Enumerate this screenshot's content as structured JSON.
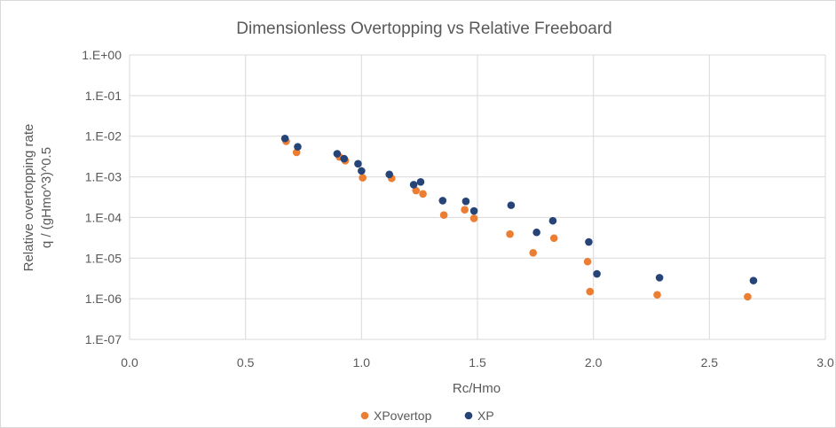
{
  "chart_data": {
    "type": "scatter",
    "title": "Dimensionless Overtopping vs Relative Freeboard",
    "xlabel": "Rc/Hmo",
    "ylabel": [
      "Relative overtopping rate",
      "q / (gHmo^3)^0.5"
    ],
    "x_scale": "linear",
    "y_scale": "log",
    "xlim": [
      0,
      3
    ],
    "ylim": [
      1e-07,
      1
    ],
    "grid": true,
    "legend_position": "bottom",
    "x_ticks": [
      {
        "value": 0,
        "label": "0.0"
      },
      {
        "value": 0.5,
        "label": "0.5"
      },
      {
        "value": 1.0,
        "label": "1.0"
      },
      {
        "value": 1.5,
        "label": "1.5"
      },
      {
        "value": 2.0,
        "label": "2.0"
      },
      {
        "value": 2.5,
        "label": "2.5"
      },
      {
        "value": 3.0,
        "label": "3.0"
      }
    ],
    "y_ticks": [
      {
        "value": 1,
        "label": "1.E+00"
      },
      {
        "value": 0.1,
        "label": "1.E-01"
      },
      {
        "value": 0.01,
        "label": "1.E-02"
      },
      {
        "value": 0.001,
        "label": "1.E-03"
      },
      {
        "value": 0.0001,
        "label": "1.E-04"
      },
      {
        "value": 1e-05,
        "label": "1.E-05"
      },
      {
        "value": 1e-06,
        "label": "1.E-06"
      },
      {
        "value": 1e-07,
        "label": "1.E-07"
      }
    ],
    "series": [
      {
        "name": "XPovertop",
        "color": "#ED7D31",
        "points": [
          [
            0.675,
            0.0075
          ],
          [
            0.72,
            0.004
          ],
          [
            0.905,
            0.0031
          ],
          [
            0.93,
            0.0025
          ],
          [
            1.005,
            0.00095
          ],
          [
            1.13,
            0.00092
          ],
          [
            1.235,
            0.00046
          ],
          [
            1.265,
            0.00038
          ],
          [
            1.355,
            0.000115
          ],
          [
            1.445,
            0.000155
          ],
          [
            1.485,
            9.5e-05
          ],
          [
            1.64,
            3.9e-05
          ],
          [
            1.74,
            1.35e-05
          ],
          [
            1.83,
            3.1e-05
          ],
          [
            1.975,
            8.2e-06
          ],
          [
            1.985,
            1.5e-06
          ],
          [
            2.275,
            1.25e-06
          ],
          [
            2.665,
            1.12e-06
          ]
        ]
      },
      {
        "name": "XP",
        "color": "#264478",
        "points": [
          [
            0.67,
            0.0088
          ],
          [
            0.725,
            0.0055
          ],
          [
            0.895,
            0.0037
          ],
          [
            0.925,
            0.0028
          ],
          [
            0.985,
            0.0021
          ],
          [
            1.0,
            0.0014
          ],
          [
            1.12,
            0.00115
          ],
          [
            1.225,
            0.00064
          ],
          [
            1.255,
            0.00075
          ],
          [
            1.35,
            0.00026
          ],
          [
            1.45,
            0.00025
          ],
          [
            1.485,
            0.000145
          ],
          [
            1.645,
            0.0002
          ],
          [
            1.755,
            4.3e-05
          ],
          [
            1.825,
            8.3e-05
          ],
          [
            1.98,
            2.5e-05
          ],
          [
            2.015,
            4.1e-06
          ],
          [
            2.285,
            3.3e-06
          ],
          [
            2.69,
            2.8e-06
          ]
        ]
      }
    ]
  }
}
